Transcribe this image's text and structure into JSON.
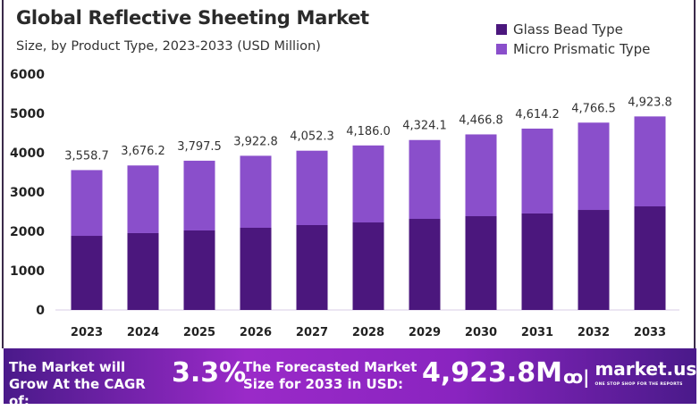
{
  "chart_data": {
    "type": "bar",
    "stacked": true,
    "title": "Global Reflective Sheeting Market",
    "subtitle": "Size, by Product Type, 2023-2033 (USD Million)",
    "categories": [
      "2023",
      "2024",
      "2025",
      "2026",
      "2027",
      "2028",
      "2029",
      "2030",
      "2031",
      "2032",
      "2033"
    ],
    "series": [
      {
        "name": "Glass Bead Type",
        "color": "#4b177d",
        "values": [
          1886,
          1955,
          2023,
          2091,
          2159,
          2227,
          2318,
          2386,
          2455,
          2545,
          2636
        ]
      },
      {
        "name": "Micro Prismatic Type",
        "color": "#8a4fcb",
        "values": [
          1672.7,
          1721.2,
          1774.5,
          1831.8,
          1893.3,
          1959.0,
          2006.1,
          2080.8,
          2159.2,
          2221.5,
          2287.8
        ]
      }
    ],
    "totals": [
      3558.7,
      3676.2,
      3797.5,
      3922.8,
      4052.3,
      4186.0,
      4324.1,
      4466.8,
      4614.2,
      4766.5,
      4923.8
    ],
    "total_labels": [
      "3,558.7",
      "3,676.2",
      "3,797.5",
      "3,922.8",
      "4,052.3",
      "4,186.0",
      "4,324.1",
      "4,466.8",
      "4,614.2",
      "4,766.5",
      "4,923.8"
    ],
    "yticks": [
      "0",
      "1000",
      "2000",
      "3000",
      "4000",
      "5000",
      "6000"
    ],
    "ylim": [
      0,
      6000
    ],
    "grid": false,
    "legend_position": "top-right"
  },
  "footer": {
    "cagr_label": "The Market will Grow At the CAGR of:",
    "cagr_value": "3.3%",
    "forecast_label": "The Forecasted Market Size for 2033 in USD:",
    "forecast_value": "4,923.8M",
    "logo_text": "market.us",
    "logo_tagline": "ONE STOP SHOP FOR THE REPORTS"
  }
}
